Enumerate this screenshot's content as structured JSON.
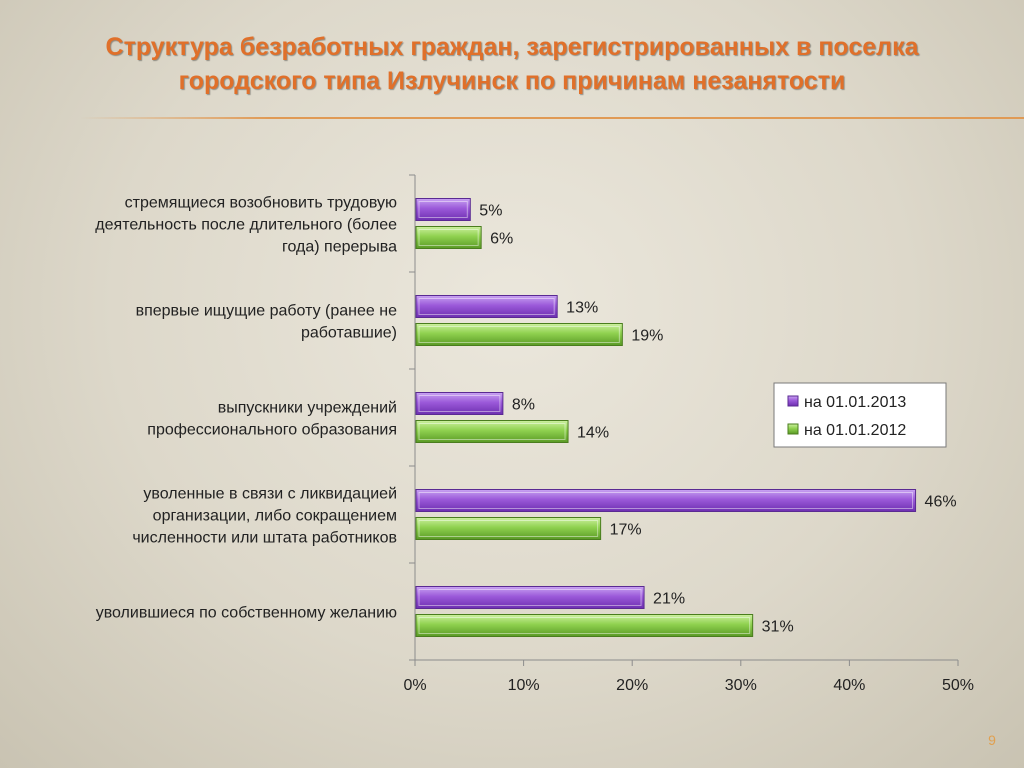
{
  "title_lines": [
    "Структура безработных граждан, зарегистрированных в поселка",
    "городского типа Излучинск по причинам незанятости"
  ],
  "page_number": "9",
  "colors": {
    "title": "#e0702a",
    "series_2013": "#9b59d9",
    "series_2012": "#8fd14f",
    "axis": "#8c8c8c"
  },
  "chart_data": {
    "type": "bar",
    "orientation": "horizontal",
    "categories": [
      "стремящиеся возобновить трудовую деятельность после длительного (более года) перерыва",
      "впервые ищущие работу (ранее не работавшие)",
      "выпускники учреждений профессионального образования",
      "уволенные в связи с ликвидацией организации, либо сокращением численности или штата работников",
      "уволившиеся по собственному желанию"
    ],
    "category_lines": [
      [
        "стремящиеся возобновить трудовую",
        "деятельность после длительного (более",
        "года) перерыва"
      ],
      [
        "впервые ищущие работу (ранее не",
        "работавшие)"
      ],
      [
        "выпускники учреждений",
        "профессионального образования"
      ],
      [
        "уволенные в связи с ликвидацией",
        "организации, либо сокращением",
        "численности или штата работников"
      ],
      [
        "уволившиеся по собственному желанию"
      ]
    ],
    "series": [
      {
        "name": "на 01.01.2013",
        "values": [
          5,
          13,
          8,
          46,
          21
        ]
      },
      {
        "name": "на 01.01.2012",
        "values": [
          6,
          19,
          14,
          17,
          31
        ]
      }
    ],
    "value_unit": "%",
    "xlim": [
      0,
      50
    ],
    "xticks": [
      0,
      10,
      20,
      30,
      40,
      50
    ],
    "xtick_labels": [
      "0%",
      "10%",
      "20%",
      "30%",
      "40%",
      "50%"
    ],
    "grid": false,
    "legend_position": "right"
  }
}
